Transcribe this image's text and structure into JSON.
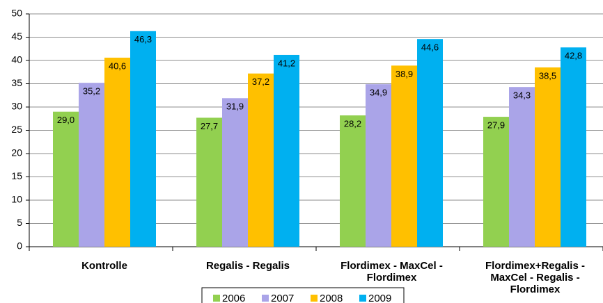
{
  "chart_data": {
    "type": "bar",
    "categories": [
      "Kontrolle",
      "Regalis - Regalis",
      "Flordimex - MaxCel - Flordimex",
      "Flordimex+Regalis - MaxCel - Regalis - Flordimex"
    ],
    "series": [
      {
        "name": "2006",
        "color": "#92d050",
        "values": [
          29.0,
          27.7,
          28.2,
          27.9
        ],
        "value_labels": [
          "29,0",
          "27,7",
          "28,2",
          "27,9"
        ]
      },
      {
        "name": "2007",
        "color": "#aaa4e8",
        "values": [
          35.2,
          31.9,
          34.9,
          34.3
        ],
        "value_labels": [
          "35,2",
          "31,9",
          "34,9",
          "34,3"
        ]
      },
      {
        "name": "2008",
        "color": "#ffc000",
        "values": [
          40.6,
          37.2,
          38.9,
          38.5
        ],
        "value_labels": [
          "40,6",
          "37,2",
          "38,9",
          "38,5"
        ]
      },
      {
        "name": "2009",
        "color": "#00b0f0",
        "values": [
          46.3,
          41.2,
          44.6,
          42.8
        ],
        "value_labels": [
          "46,3",
          "41,2",
          "44,6",
          "42,8"
        ]
      }
    ],
    "ylim": [
      0,
      50
    ],
    "yticks": [
      0,
      5,
      10,
      15,
      20,
      25,
      30,
      35,
      40,
      45,
      50
    ],
    "grid": true,
    "legend": "bottom"
  }
}
